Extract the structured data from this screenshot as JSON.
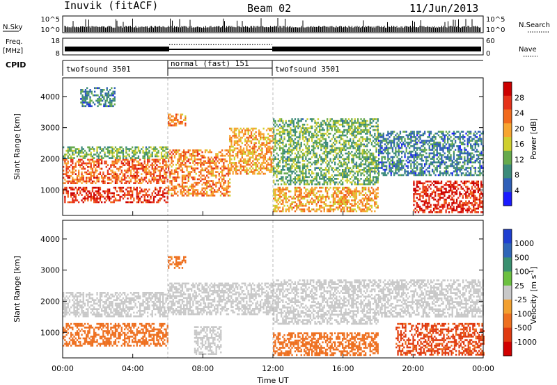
{
  "header": {
    "station": "Inuvik (fitACF)",
    "beam": "Beam 02",
    "date": "11/Jun/2013"
  },
  "aux_panels": {
    "nsky": {
      "label": "N.Sky",
      "right_label": "N.Search",
      "left_ticks": [
        "10^5",
        "10^0"
      ],
      "right_ticks": [
        "10^5",
        "10^0"
      ]
    },
    "freq": {
      "label_top": "Freq.",
      "label_unit": "[MHz]",
      "left_ticks": [
        "18",
        "8"
      ],
      "right_ticks": [
        "60",
        "0"
      ],
      "right_label": "Nave"
    },
    "cpid": {
      "label": "CPID",
      "segments": [
        {
          "name": "twofsound 3501",
          "start_h": 0,
          "end_h": 6
        },
        {
          "name": "normal (fast) 151",
          "start_h": 6,
          "end_h": 12
        },
        {
          "name": "twofsound 3501",
          "start_h": 12,
          "end_h": 24
        }
      ]
    }
  },
  "colors": {
    "power": [
      "#1a1aff",
      "#2f5fb8",
      "#3b8a7a",
      "#66aa4c",
      "#cfcf2e",
      "#f7a530",
      "#f26a1c",
      "#e6321a",
      "#cc0000"
    ],
    "velocity": [
      "#1f3fd1",
      "#2f66b8",
      "#3a9070",
      "#6cc040",
      "#c8c8c8",
      "#f2a030",
      "#ee7020",
      "#e03a10",
      "#d10000"
    ],
    "ground_scatter": "#bfbfbf"
  },
  "chart_data": [
    {
      "type": "heatmap",
      "title": "Power",
      "xlabel": "",
      "ylabel": "Slant Range [km]",
      "x_range_hours": [
        0,
        24
      ],
      "y_range_km": [
        180,
        4600
      ],
      "y_ticks": [
        "1000",
        "2000",
        "3000",
        "4000"
      ],
      "colorbar_label": "Power [dB]",
      "colorbar_ticks": [
        "4",
        "8",
        "12",
        "16",
        "20",
        "24",
        "28"
      ],
      "colorbar_range": [
        0,
        32
      ],
      "mode_change_hours": [
        6,
        12
      ],
      "scatter_bands": [
        {
          "start_h": 0.0,
          "end_h": 6.0,
          "range_lo": 600,
          "range_hi": 1100,
          "level": 27
        },
        {
          "start_h": 0.0,
          "end_h": 6.0,
          "range_lo": 1200,
          "range_hi": 2000,
          "level": 24
        },
        {
          "start_h": 0.0,
          "end_h": 6.0,
          "range_lo": 2000,
          "range_hi": 2400,
          "level": 12
        },
        {
          "start_h": 1.0,
          "end_h": 3.0,
          "range_lo": 3700,
          "range_hi": 4300,
          "level": 8
        },
        {
          "start_h": 6.0,
          "end_h": 9.5,
          "range_lo": 800,
          "range_hi": 2300,
          "level": 22
        },
        {
          "start_h": 6.0,
          "end_h": 7.0,
          "range_lo": 3100,
          "range_hi": 3450,
          "level": 22
        },
        {
          "start_h": 9.5,
          "end_h": 12.0,
          "range_lo": 1500,
          "range_hi": 3000,
          "level": 20
        },
        {
          "start_h": 12.0,
          "end_h": 18.0,
          "range_lo": 1200,
          "range_hi": 3300,
          "level": 12
        },
        {
          "start_h": 12.0,
          "end_h": 18.0,
          "range_lo": 300,
          "range_hi": 1100,
          "level": 20
        },
        {
          "start_h": 18.0,
          "end_h": 24.0,
          "range_lo": 1500,
          "range_hi": 2900,
          "level": 8
        },
        {
          "start_h": 20.0,
          "end_h": 24.0,
          "range_lo": 300,
          "range_hi": 1300,
          "level": 28
        }
      ]
    },
    {
      "type": "heatmap",
      "title": "Velocity",
      "xlabel": "Time UT",
      "ylabel": "Slant Range [km]",
      "x_range_hours": [
        0,
        24
      ],
      "x_ticks": [
        "00:00",
        "04:00",
        "08:00",
        "12:00",
        "16:00",
        "20:00",
        "00:00"
      ],
      "y_range_km": [
        180,
        4600
      ],
      "y_ticks": [
        "1000",
        "2000",
        "3000",
        "4000"
      ],
      "colorbar_label": "Velocity [m s^-1]",
      "colorbar_ticks": [
        "1000",
        "500",
        "100",
        "25",
        "-25",
        "-100",
        "-500",
        "-1000"
      ],
      "mode_change_hours": [
        6,
        12
      ],
      "scatter_bands": [
        {
          "start_h": 0.0,
          "end_h": 6.0,
          "range_lo": 1500,
          "range_hi": 2300,
          "velocity": 0
        },
        {
          "start_h": 0.0,
          "end_h": 6.0,
          "range_lo": 600,
          "range_hi": 1300,
          "velocity": -300
        },
        {
          "start_h": 6.0,
          "end_h": 7.0,
          "range_lo": 3100,
          "range_hi": 3450,
          "velocity": -250
        },
        {
          "start_h": 6.0,
          "end_h": 12.0,
          "range_lo": 1600,
          "range_hi": 2600,
          "velocity": 0
        },
        {
          "start_h": 7.5,
          "end_h": 9.0,
          "range_lo": 300,
          "range_hi": 1200,
          "velocity": 0
        },
        {
          "start_h": 12.0,
          "end_h": 18.0,
          "range_lo": 1300,
          "range_hi": 2700,
          "velocity": 0
        },
        {
          "start_h": 12.0,
          "end_h": 18.0,
          "range_lo": 300,
          "range_hi": 1000,
          "velocity": -300
        },
        {
          "start_h": 18.0,
          "end_h": 24.0,
          "range_lo": 1500,
          "range_hi": 2700,
          "velocity": 0
        },
        {
          "start_h": 19.0,
          "end_h": 24.0,
          "range_lo": 300,
          "range_hi": 1300,
          "velocity": -600
        }
      ]
    }
  ]
}
